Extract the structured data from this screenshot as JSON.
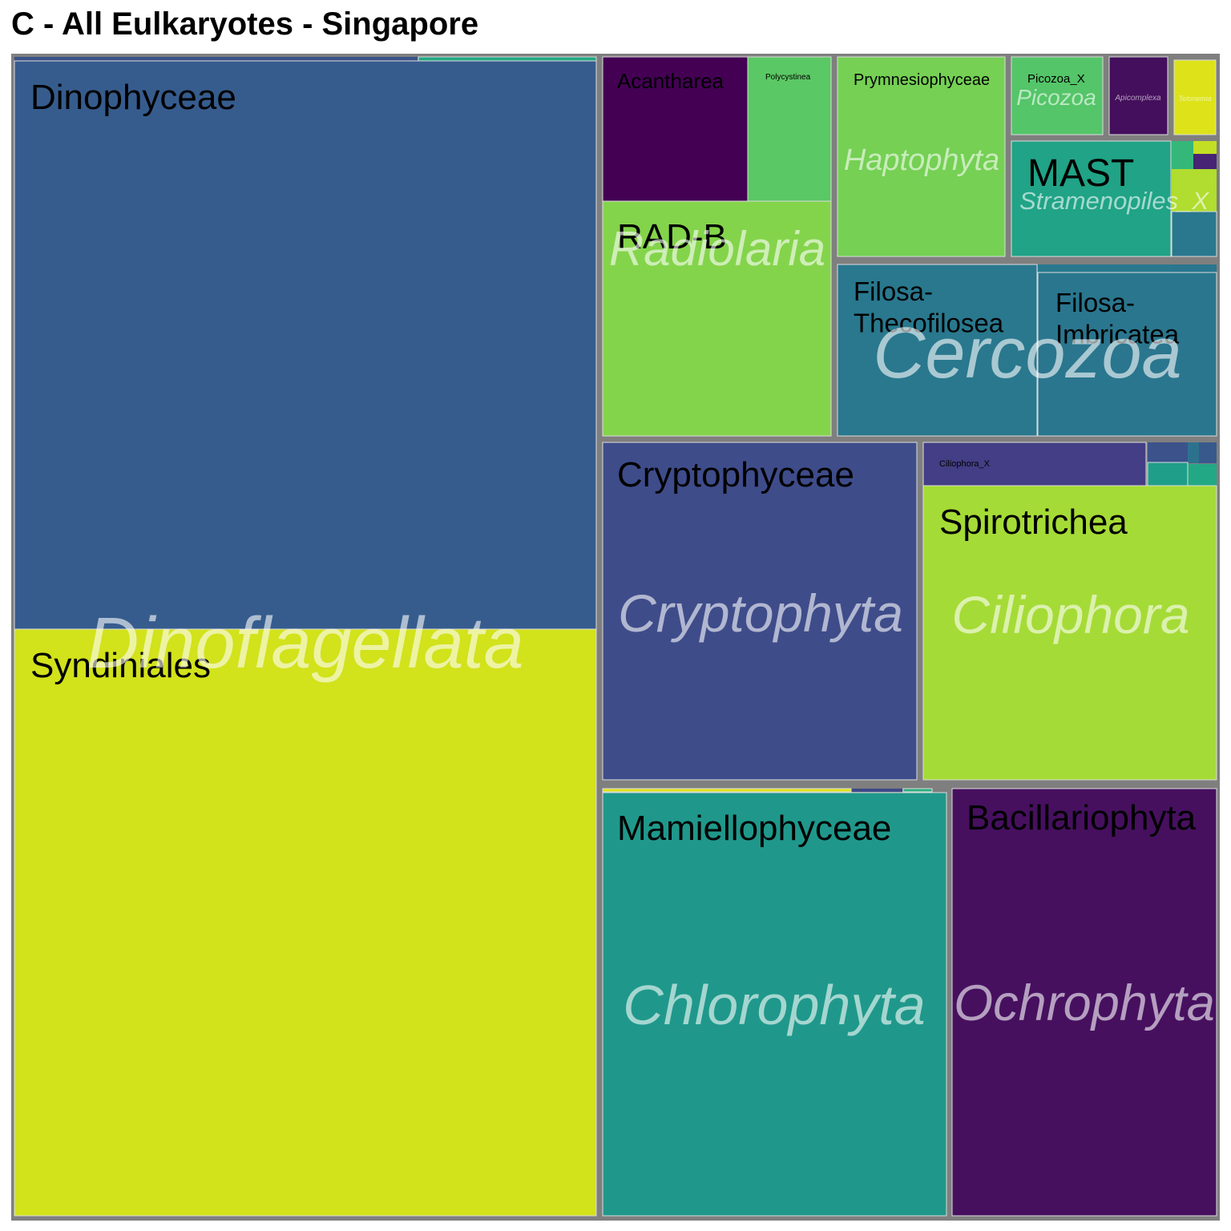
{
  "title": "C - All Eulkaryotes - Singapore",
  "chart_data": {
    "type": "treemap",
    "title": "C - All Eulkaryotes - Singapore",
    "value_note": "relative read abundance (approx. share of total area, %)",
    "groups": [
      {
        "phylum": "Dinoflagellata",
        "value": 47.0,
        "children": [
          {
            "class": "Syndiniales",
            "value": 30.0,
            "color": "#d2e21b"
          },
          {
            "class": "Dinophyceae",
            "value": 16.5,
            "color": "#365c8d"
          },
          {
            "class": "",
            "value": 0.5,
            "color": "#23a983"
          }
        ]
      },
      {
        "phylum": "Chlorophyta",
        "value": 10.4,
        "children": [
          {
            "class": "Mamiellophyceae",
            "value": 9.9,
            "color": "#1f988b"
          },
          {
            "class": "",
            "value": 0.2,
            "color": "#dfe318"
          },
          {
            "class": "",
            "value": 0.3,
            "color": "#2ab07f"
          }
        ]
      },
      {
        "phylum": "Ochrophyta",
        "value": 7.7,
        "children": [
          {
            "class": "Bacillariophyta",
            "value": 7.7,
            "color": "#46105f"
          }
        ]
      },
      {
        "phylum": "Cryptophyta",
        "value": 7.7,
        "children": [
          {
            "class": "Cryptophyceae",
            "value": 7.7,
            "color": "#3e4c8a"
          }
        ]
      },
      {
        "phylum": "Ciliophora",
        "value": 7.7,
        "children": [
          {
            "class": "Spirotrichea",
            "value": 6.6,
            "color": "#a5db36"
          },
          {
            "class": "Ciliophora_X",
            "value": 0.6,
            "color": "#433e85"
          },
          {
            "class": "",
            "value": 0.5,
            "color": "#1f9e89"
          }
        ]
      },
      {
        "phylum": "Radiolaria",
        "value": 6.6,
        "children": [
          {
            "class": "RAD-B",
            "value": 4.4,
            "color": "#84d44b"
          },
          {
            "class": "Acantharea",
            "value": 1.2,
            "color": "#440154"
          },
          {
            "class": "Polycystinea",
            "value": 1.0,
            "color": "#5ac864"
          }
        ]
      },
      {
        "phylum": "Cercozoa",
        "value": 6.3,
        "children": [
          {
            "class": "Filosa-Thecofilosea",
            "value": 3.2,
            "color": "#29788e"
          },
          {
            "class": "Filosa-Imbricatea",
            "value": 3.1,
            "color": "#2a768e"
          }
        ]
      },
      {
        "phylum": "Haptophyta",
        "value": 2.8,
        "children": [
          {
            "class": "Prymnesiophyceae",
            "value": 2.8,
            "color": "#75d054"
          }
        ]
      },
      {
        "phylum": "Stramenopiles_X",
        "value": 1.7,
        "children": [
          {
            "class": "MAST",
            "value": 1.5,
            "color": "#20a386"
          },
          {
            "class": "",
            "value": 0.2,
            "color": "#2a788e"
          }
        ]
      },
      {
        "phylum": "Picozoa",
        "value": 0.7,
        "children": [
          {
            "class": "Picozoa_X",
            "value": 0.7,
            "color": "#54c568"
          }
        ]
      },
      {
        "phylum": "Apicomplexa",
        "value": 0.5,
        "children": [
          {
            "class": "",
            "value": 0.5,
            "color": "#440f5c"
          }
        ]
      },
      {
        "phylum": "Telonemia",
        "value": 0.3,
        "children": [
          {
            "class": "",
            "value": 0.3,
            "color": "#dde318"
          }
        ]
      }
    ]
  },
  "colors": {
    "background": "#ffffff",
    "group_border": "#7f7f7f",
    "subgroup_border": "#dcdcdc"
  }
}
